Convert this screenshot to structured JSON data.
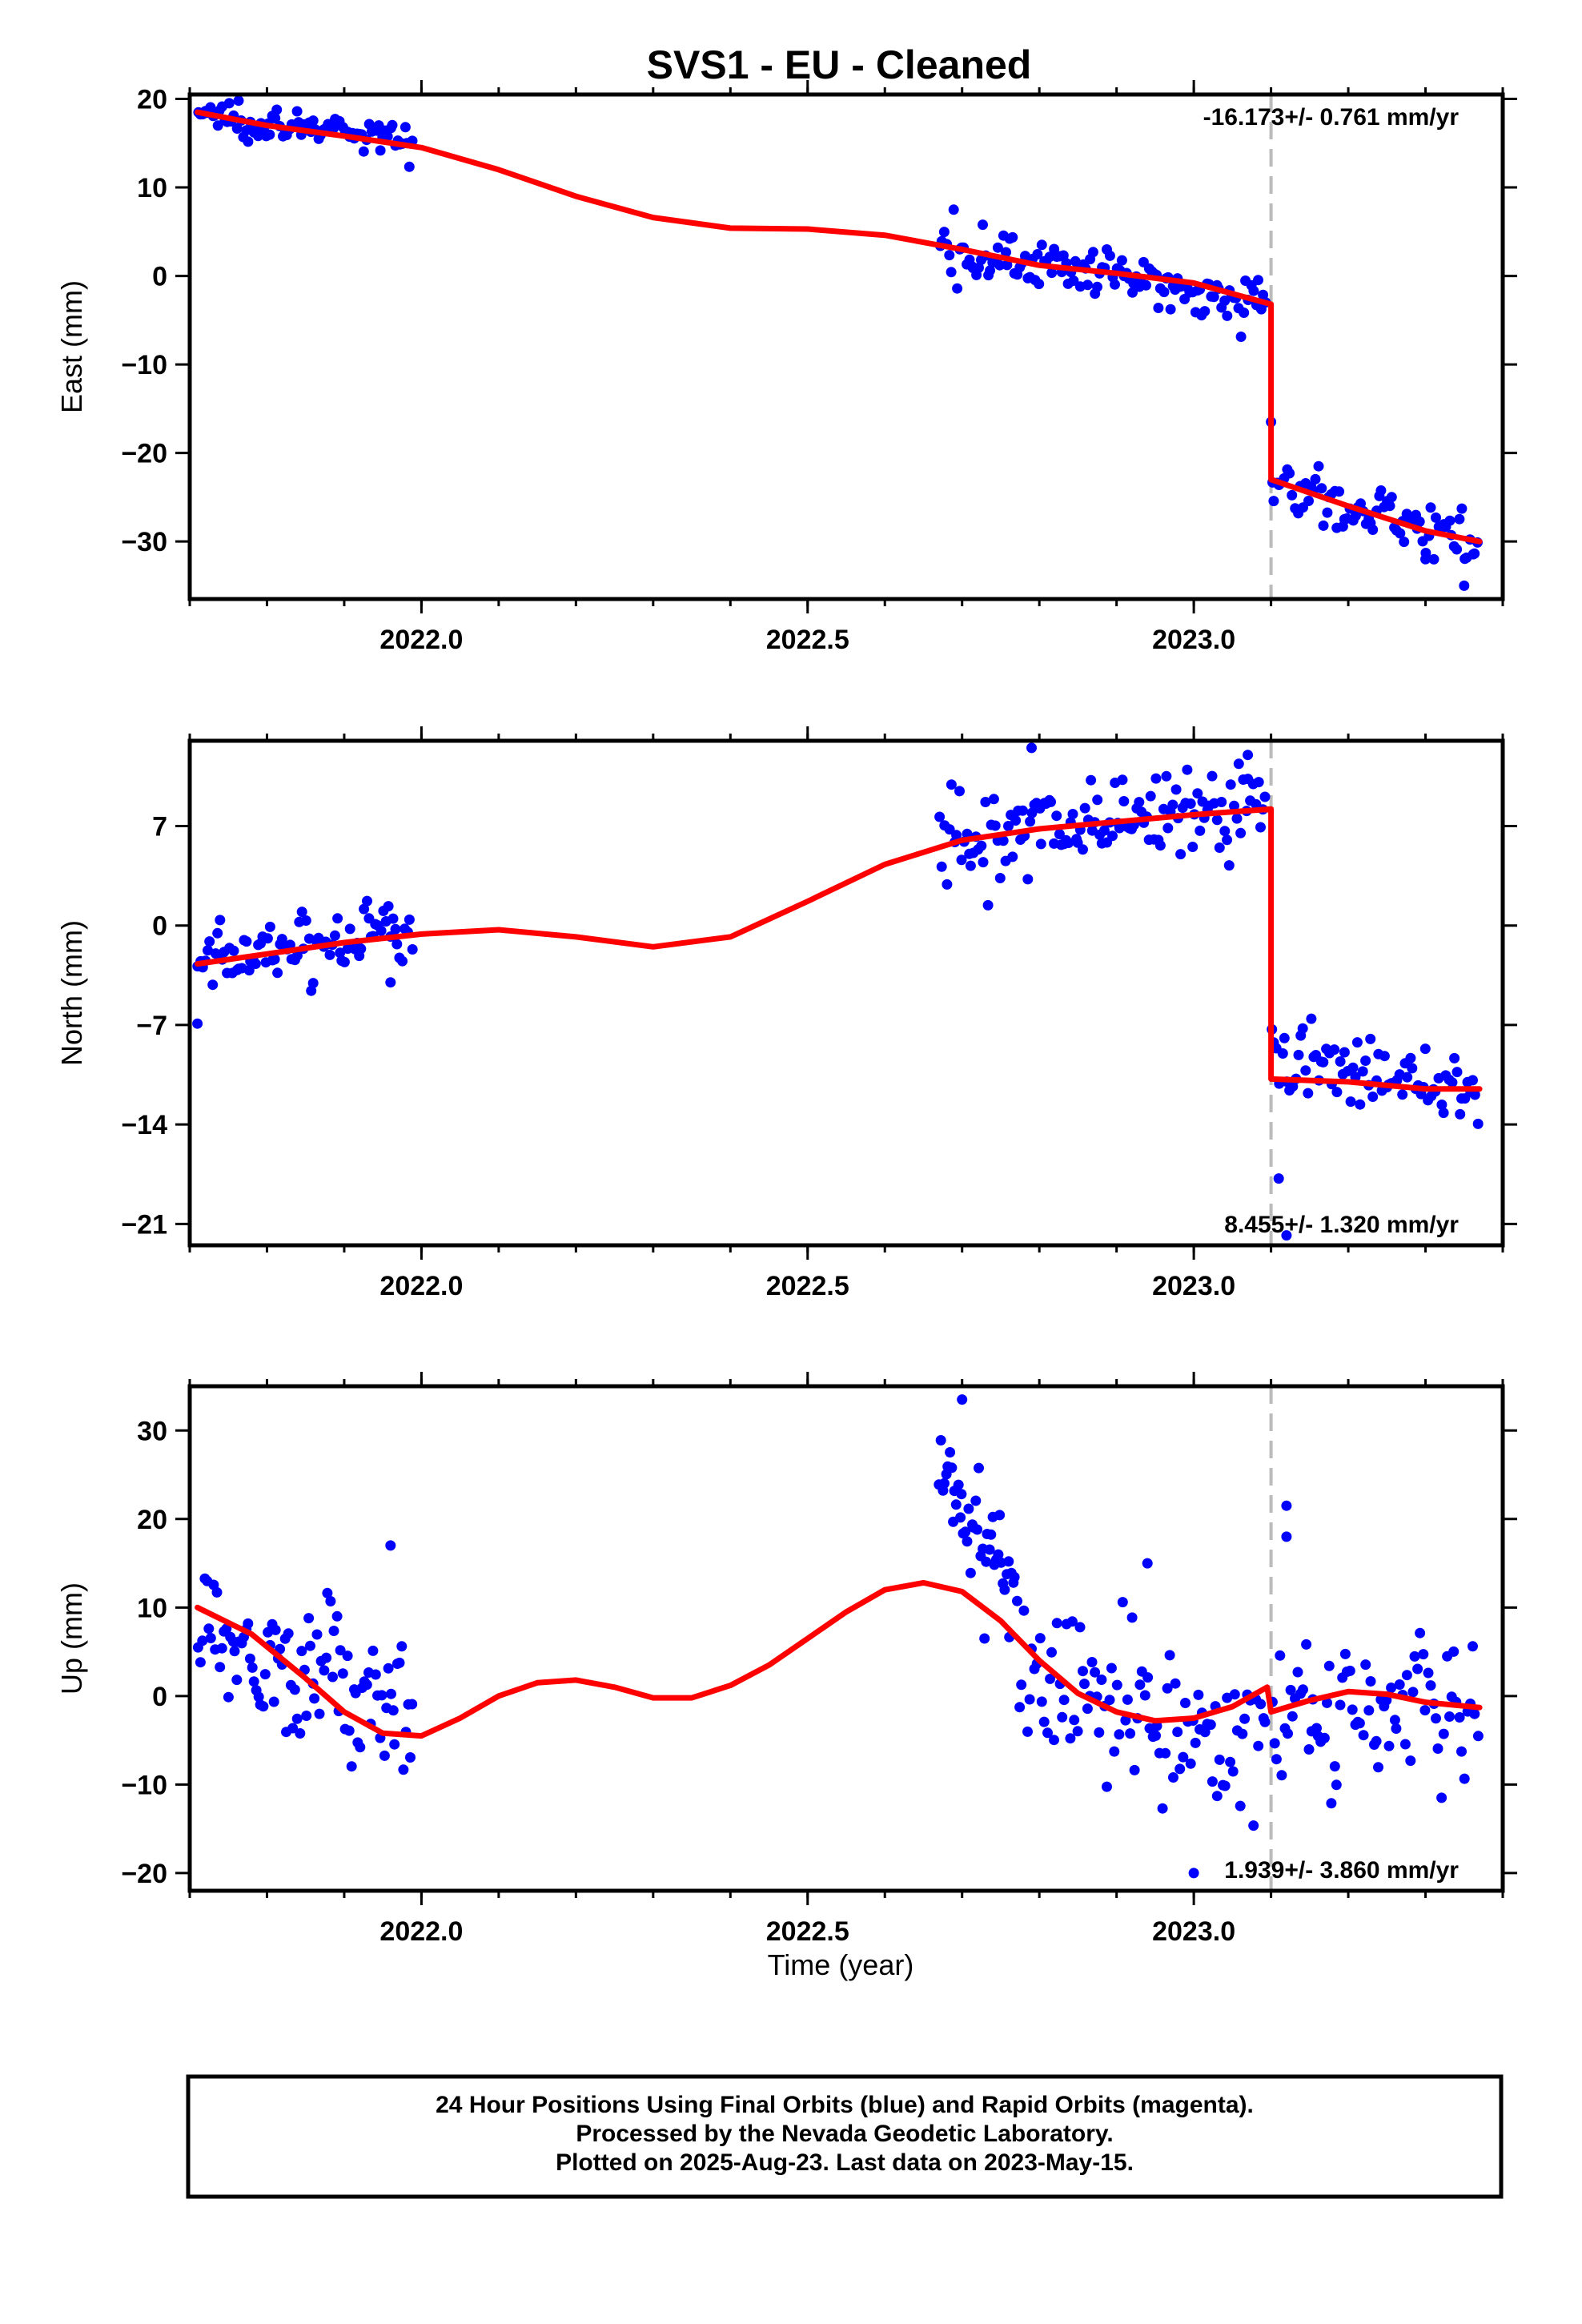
{
  "chart_data": {
    "title": "SVS1  - EU - Cleaned",
    "xlabel": "Time (year)",
    "xlim": [
      2021.7,
      2023.4
    ],
    "xticks": [
      2022.0,
      2022.5,
      2023.0
    ],
    "xtick_labels": [
      "2022.0",
      "2022.5",
      "2023.0"
    ],
    "offset_epoch": 2023.1,
    "colors": {
      "data": "#0000ff",
      "model": "#ff0000",
      "offset_line": "#bbbbbb"
    },
    "panels": [
      {
        "type": "scatter",
        "ylabel": "East (mm)",
        "ylim": [
          -36.5,
          20.5
        ],
        "yticks": [
          20,
          10,
          0,
          -10,
          -20,
          -30
        ],
        "ytick_labels": [
          "20",
          "10",
          "0",
          "−10",
          "−20",
          "−30"
        ],
        "rate_text": "-16.173+/- 0.761 mm/yr",
        "rate_position": "top-right",
        "series": [
          {
            "kind": "observations",
            "segments": [
              {
                "t_start": 2021.71,
                "t_end": 2021.99,
                "y_start": 18.5,
                "y_end": 15.0,
                "scatter": 1.0,
                "count": 90
              },
              {
                "t_start": 2022.67,
                "t_end": 2023.095,
                "y_start": 3.5,
                "y_end": -3.0,
                "scatter": 1.3,
                "count": 135
              },
              {
                "t_start": 2023.1,
                "t_end": 2023.37,
                "y_start": -23.5,
                "y_end": -30.0,
                "scatter": 1.5,
                "count": 80
              }
            ],
            "outliers": [
              {
                "t": 2023.1,
                "y": -16.5
              },
              {
                "t": 2023.35,
                "y": -35.0
              },
              {
                "t": 2023.3,
                "y": -32.0
              }
            ]
          },
          {
            "kind": "model",
            "points": [
              [
                2021.71,
                18.5
              ],
              [
                2021.8,
                17.0
              ],
              [
                2021.9,
                15.8
              ],
              [
                2022.0,
                14.5
              ],
              [
                2022.1,
                12.0
              ],
              [
                2022.2,
                9.0
              ],
              [
                2022.3,
                6.6
              ],
              [
                2022.4,
                5.4
              ],
              [
                2022.5,
                5.3
              ],
              [
                2022.6,
                4.6
              ],
              [
                2022.7,
                3.0
              ],
              [
                2022.8,
                1.2
              ],
              [
                2022.9,
                0.3
              ],
              [
                2023.0,
                -0.8
              ],
              [
                2023.05,
                -2.0
              ],
              [
                2023.1,
                -3.2
              ],
              [
                2023.1,
                -23.0
              ],
              [
                2023.2,
                -26.0
              ],
              [
                2023.3,
                -28.8
              ],
              [
                2023.37,
                -30.0
              ]
            ]
          }
        ]
      },
      {
        "type": "scatter",
        "ylabel": "North (mm)",
        "ylim": [
          -22.5,
          13.0
        ],
        "yticks": [
          7,
          0,
          -7,
          -14,
          -21
        ],
        "ytick_labels": [
          "7",
          "0",
          "−7",
          "−14",
          "−21"
        ],
        "rate_text": "8.455+/- 1.320 mm/yr",
        "rate_position": "bottom-right",
        "series": [
          {
            "kind": "observations",
            "segments": [
              {
                "t_start": 2021.71,
                "t_end": 2021.99,
                "y_start": -2.7,
                "y_end": 0.0,
                "scatter": 1.1,
                "count": 90
              },
              {
                "t_start": 2022.67,
                "t_end": 2023.095,
                "y_start": 6.0,
                "y_end": 8.5,
                "scatter": 1.8,
                "count": 135
              },
              {
                "t_start": 2023.1,
                "t_end": 2023.37,
                "y_start": -9.5,
                "y_end": -11.5,
                "scatter": 1.5,
                "count": 80
              }
            ],
            "outliers": [
              {
                "t": 2021.71,
                "y": -6.9
              },
              {
                "t": 2021.96,
                "y": -4.0
              },
              {
                "t": 2023.11,
                "y": -17.8
              },
              {
                "t": 2023.12,
                "y": -21.8
              },
              {
                "t": 2022.79,
                "y": 12.5
              },
              {
                "t": 2023.07,
                "y": 12.0
              }
            ]
          },
          {
            "kind": "model",
            "points": [
              [
                2021.71,
                -2.7
              ],
              [
                2021.8,
                -2.0
              ],
              [
                2021.9,
                -1.2
              ],
              [
                2022.0,
                -0.6
              ],
              [
                2022.1,
                -0.3
              ],
              [
                2022.2,
                -0.8
              ],
              [
                2022.3,
                -1.5
              ],
              [
                2022.4,
                -0.8
              ],
              [
                2022.5,
                1.7
              ],
              [
                2022.6,
                4.3
              ],
              [
                2022.7,
                6.0
              ],
              [
                2022.8,
                6.8
              ],
              [
                2022.9,
                7.3
              ],
              [
                2023.0,
                7.8
              ],
              [
                2023.1,
                8.2
              ],
              [
                2023.1,
                -10.8
              ],
              [
                2023.2,
                -11.0
              ],
              [
                2023.3,
                -11.5
              ],
              [
                2023.37,
                -11.5
              ]
            ]
          }
        ]
      },
      {
        "type": "scatter",
        "ylabel": "Up (mm)",
        "ylim": [
          -22.0,
          35.0
        ],
        "yticks": [
          30,
          20,
          10,
          0,
          -10,
          -20
        ],
        "ytick_labels": [
          "30",
          "20",
          "10",
          "0",
          "−10",
          "−20"
        ],
        "rate_text": "1.939+/- 3.860 mm/yr",
        "rate_position": "bottom-right",
        "series": [
          {
            "kind": "observations",
            "segments": [
              {
                "t_start": 2021.71,
                "t_end": 2021.99,
                "y_start": 8.0,
                "y_end": -2.0,
                "scatter": 4.0,
                "count": 100
              },
              {
                "t_start": 2022.67,
                "t_end": 2022.77,
                "y_start": 25.0,
                "y_end": 13.0,
                "scatter": 4.0,
                "count": 45
              },
              {
                "t_start": 2022.77,
                "t_end": 2023.095,
                "y_start": 3.0,
                "y_end": -7.0,
                "scatter": 4.5,
                "count": 100
              },
              {
                "t_start": 2023.1,
                "t_end": 2023.37,
                "y_start": -3.0,
                "y_end": 0.0,
                "scatter": 4.0,
                "count": 80
              }
            ],
            "outliers": [
              {
                "t": 2021.96,
                "y": 17.0
              },
              {
                "t": 2022.7,
                "y": 33.5
              },
              {
                "t": 2023.12,
                "y": 21.5
              },
              {
                "t": 2023.12,
                "y": 18.0
              },
              {
                "t": 2023.0,
                "y": -20.0
              },
              {
                "t": 2022.94,
                "y": 15.0
              }
            ]
          },
          {
            "kind": "model",
            "points": [
              [
                2021.71,
                10.0
              ],
              [
                2021.78,
                7.0
              ],
              [
                2021.85,
                2.0
              ],
              [
                2021.9,
                -1.8
              ],
              [
                2021.95,
                -4.2
              ],
              [
                2022.0,
                -4.5
              ],
              [
                2022.05,
                -2.5
              ],
              [
                2022.1,
                0.0
              ],
              [
                2022.15,
                1.5
              ],
              [
                2022.2,
                1.8
              ],
              [
                2022.25,
                1.0
              ],
              [
                2022.3,
                -0.2
              ],
              [
                2022.35,
                -0.2
              ],
              [
                2022.4,
                1.2
              ],
              [
                2022.45,
                3.5
              ],
              [
                2022.5,
                6.5
              ],
              [
                2022.55,
                9.5
              ],
              [
                2022.6,
                12.0
              ],
              [
                2022.65,
                12.8
              ],
              [
                2022.7,
                11.8
              ],
              [
                2022.75,
                8.5
              ],
              [
                2022.8,
                4.0
              ],
              [
                2022.85,
                0.3
              ],
              [
                2022.9,
                -1.8
              ],
              [
                2022.95,
                -2.8
              ],
              [
                2023.0,
                -2.5
              ],
              [
                2023.05,
                -1.2
              ],
              [
                2023.095,
                1.0
              ],
              [
                2023.1,
                -1.8
              ],
              [
                2023.15,
                -0.5
              ],
              [
                2023.2,
                0.5
              ],
              [
                2023.25,
                0.2
              ],
              [
                2023.3,
                -0.7
              ],
              [
                2023.37,
                -1.3
              ]
            ]
          }
        ]
      }
    ]
  },
  "footer": {
    "line1": "24 Hour Positions Using Final Orbits (blue) and Rapid Orbits (magenta).",
    "line2": "Processed by the Nevada Geodetic Laboratory.",
    "line3": "Plotted on 2025-Aug-23. Last data on 2023-May-15."
  }
}
